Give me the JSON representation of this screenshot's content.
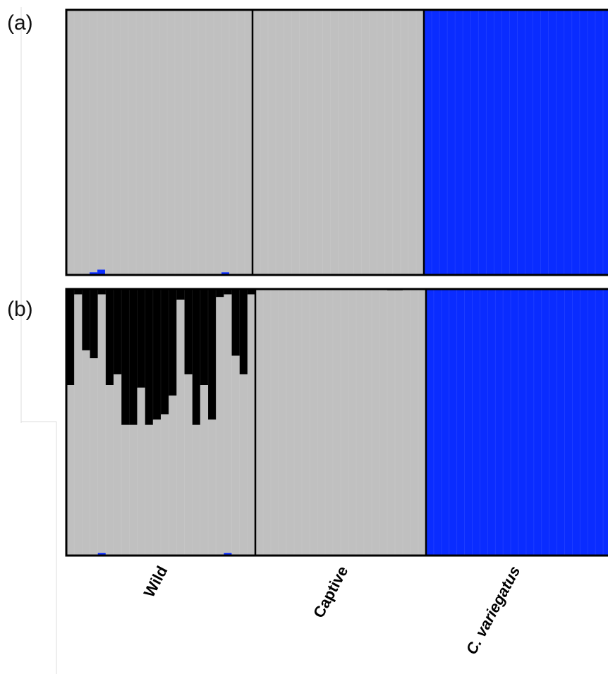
{
  "chart_data": {
    "type": "bar",
    "subtype": "stacked-100",
    "description": "STRUCTURE-style admixture barplot: each column is one individual, stacked ancestry proportions (0-1).",
    "colors": {
      "grey": "#c0c0c0",
      "blue": "#0a2cff",
      "black": "#000000"
    },
    "groups": [
      {
        "label": "Wild",
        "n": 24,
        "italic": false
      },
      {
        "label": "Captive",
        "n": 22,
        "italic": false
      },
      {
        "label": "C. variegatus",
        "n": 24,
        "italic": true
      }
    ],
    "panels": [
      {
        "label": "(a)",
        "K": 2,
        "clusters": [
          "grey",
          "blue"
        ],
        "groups": [
          {
            "grey": [
              1,
              1,
              1,
              0.99,
              0.98,
              1,
              1,
              1,
              1,
              1,
              1,
              1,
              1,
              1,
              1,
              1,
              1,
              1,
              1,
              1,
              0.99,
              1,
              1,
              1
            ],
            "blue": [
              0,
              0,
              0,
              0.01,
              0.02,
              0,
              0,
              0,
              0,
              0,
              0,
              0,
              0,
              0,
              0,
              0,
              0,
              0,
              0,
              0,
              0.01,
              0,
              0,
              0
            ]
          },
          {
            "grey": [
              1,
              1,
              1,
              1,
              1,
              1,
              1,
              1,
              1,
              1,
              1,
              1,
              1,
              1,
              1,
              1,
              1,
              1,
              1,
              1,
              1,
              1
            ],
            "blue": [
              0,
              0,
              0,
              0,
              0,
              0,
              0,
              0,
              0,
              0,
              0,
              0,
              0,
              0,
              0,
              0,
              0,
              0,
              0,
              0,
              0,
              0
            ]
          },
          {
            "grey": [
              0,
              0,
              0,
              0,
              0,
              0,
              0,
              0,
              0,
              0,
              0,
              0,
              0,
              0,
              0,
              0,
              0,
              0,
              0,
              0,
              0,
              0,
              0,
              0
            ],
            "blue": [
              1,
              1,
              1,
              1,
              1,
              1,
              1,
              1,
              1,
              1,
              1,
              1,
              1,
              1,
              1,
              1,
              1,
              1,
              1,
              1,
              1,
              1,
              1,
              1
            ]
          }
        ]
      },
      {
        "label": "(b)",
        "K": 3,
        "clusters": [
          "black",
          "grey",
          "blue"
        ],
        "groups": [
          {
            "black": [
              0.36,
              0.02,
              0.23,
              0.26,
              0.02,
              0.36,
              0.32,
              0.51,
              0.51,
              0.37,
              0.51,
              0.49,
              0.47,
              0.4,
              0.04,
              0.32,
              0.51,
              0.36,
              0.49,
              0.03,
              0.02,
              0.25,
              0.32,
              0.02
            ],
            "blue": [
              0,
              0,
              0,
              0,
              0.01,
              0,
              0,
              0,
              0,
              0,
              0,
              0,
              0,
              0,
              0,
              0,
              0,
              0,
              0,
              0,
              0.01,
              0,
              0,
              0
            ]
          },
          {
            "black": [
              0,
              0,
              0,
              0,
              0,
              0,
              0,
              0,
              0,
              0,
              0,
              0,
              0,
              0,
              0,
              0,
              0,
              0.005,
              0.005,
              0,
              0,
              0
            ],
            "blue": [
              0,
              0,
              0,
              0,
              0,
              0,
              0,
              0,
              0,
              0,
              0,
              0,
              0,
              0,
              0,
              0,
              0,
              0,
              0,
              0,
              0,
              0
            ]
          },
          {
            "black": [
              0,
              0,
              0,
              0,
              0,
              0,
              0,
              0,
              0,
              0,
              0,
              0,
              0,
              0,
              0,
              0,
              0,
              0,
              0,
              0,
              0,
              0,
              0,
              0
            ],
            "blue": [
              1,
              1,
              1,
              1,
              1,
              1,
              1,
              1,
              1,
              1,
              1,
              1,
              1,
              1,
              1,
              1,
              1,
              1,
              1,
              1,
              1,
              1,
              1,
              1
            ]
          }
        ]
      }
    ],
    "ylim": [
      0,
      1
    ],
    "grid": false,
    "legend": "none"
  }
}
